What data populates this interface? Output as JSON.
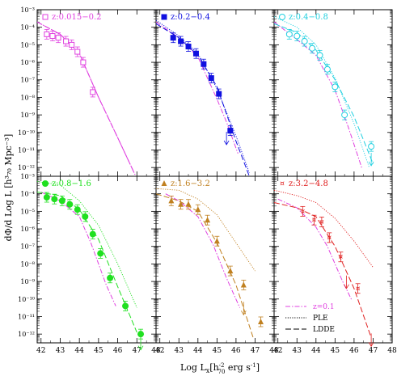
{
  "figure": {
    "xlabel": "Log L",
    "xlabel_sub": "x",
    "xlabel_units_pre": "[h",
    "xlabel_h_sup": "-2",
    "xlabel_h_sub": "70",
    "xlabel_units_post": " erg s",
    "xlabel_s_sup": "-1",
    "xlabel_close": "]",
    "ylabel": "dΦ/d Log L [h³₇₀ Mpc⁻³]"
  },
  "chart_data": {
    "type": "scatter",
    "layout": "2x3 panel grid",
    "xlim": [
      41.8,
      48.0
    ],
    "ylog": true,
    "ylim_exponent": [
      -12.5,
      -3
    ],
    "x_ticks": [
      42,
      43,
      44,
      45,
      46,
      47,
      48
    ],
    "x_tick_labels": [
      "42",
      "43",
      "44",
      "45",
      "46",
      "47",
      "48"
    ],
    "y_tick_labels": [
      "10⁻³",
      "10⁻⁴",
      "10⁻⁵",
      "10⁻⁶",
      "10⁻⁷",
      "10⁻⁸",
      "10⁻⁹",
      "10⁻¹⁰",
      "10⁻¹¹",
      "10⁻¹²"
    ],
    "legend": {
      "position": "bottom-right panel, lower right",
      "entries": [
        {
          "label": "z=0.1",
          "style": "dash-dot",
          "color": "#e040e0"
        },
        {
          "label": "PLE",
          "style": "dotted",
          "color": "#000000"
        },
        {
          "label": "LDDE",
          "style": "long-dash",
          "color": "#000000"
        }
      ]
    },
    "panels": [
      {
        "label": "z:0.015−0.2",
        "color": "#e040e0",
        "marker": "open-square",
        "points": [
          {
            "x": 42.3,
            "y": -4.4
          },
          {
            "x": 42.6,
            "y": -4.5
          },
          {
            "x": 42.9,
            "y": -4.6
          },
          {
            "x": 43.3,
            "y": -4.8
          },
          {
            "x": 43.6,
            "y": -5.0
          },
          {
            "x": 43.9,
            "y": -5.4
          },
          {
            "x": 44.2,
            "y": -6.0
          },
          {
            "x": 44.7,
            "y": -7.7
          }
        ],
        "ldde": [
          [
            41.8,
            -3.7
          ],
          [
            43.0,
            -4.4
          ],
          [
            44.0,
            -5.5
          ],
          [
            45.0,
            -8.0
          ],
          [
            46.0,
            -10.3
          ],
          [
            46.9,
            -12.4
          ]
        ],
        "ple": [
          [
            41.8,
            -3.7
          ],
          [
            43.0,
            -4.4
          ],
          [
            44.0,
            -5.5
          ],
          [
            45.0,
            -8.0
          ],
          [
            46.0,
            -10.3
          ],
          [
            46.9,
            -12.4
          ]
        ],
        "z01": [
          [
            41.8,
            -3.7
          ],
          [
            43.0,
            -4.4
          ],
          [
            44.0,
            -5.5
          ],
          [
            45.0,
            -8.0
          ],
          [
            46.0,
            -10.3
          ],
          [
            46.9,
            -12.4
          ]
        ]
      },
      {
        "label": "z:0.2−0.4",
        "color": "#1010e0",
        "marker": "filled-square",
        "points": [
          {
            "x": 42.7,
            "y": -4.6
          },
          {
            "x": 43.1,
            "y": -4.8
          },
          {
            "x": 43.5,
            "y": -5.1
          },
          {
            "x": 43.9,
            "y": -5.5
          },
          {
            "x": 44.3,
            "y": -6.1
          },
          {
            "x": 44.7,
            "y": -6.9
          },
          {
            "x": 45.1,
            "y": -7.8
          },
          {
            "x": 45.7,
            "y": -9.9
          }
        ],
        "upper_limits": [
          {
            "x": 45.5,
            "y": -10.7
          }
        ],
        "ldde": [
          [
            41.8,
            -3.8
          ],
          [
            43.0,
            -4.6
          ],
          [
            44.0,
            -5.6
          ],
          [
            45.0,
            -7.4
          ],
          [
            46.0,
            -10.5
          ],
          [
            46.7,
            -12.5
          ]
        ],
        "ple": [
          [
            41.8,
            -3.6
          ],
          [
            43.0,
            -4.5
          ],
          [
            44.0,
            -5.5
          ],
          [
            45.0,
            -7.5
          ],
          [
            46.0,
            -10.2
          ],
          [
            46.7,
            -12.3
          ]
        ],
        "z01": [
          [
            41.8,
            -3.7
          ],
          [
            43.0,
            -4.6
          ],
          [
            44.0,
            -5.7
          ],
          [
            45.0,
            -8.1
          ],
          [
            45.5,
            -9.4
          ],
          [
            46.1,
            -11.2
          ]
        ]
      },
      {
        "label": "z:0.4−0.8",
        "color": "#20d0e0",
        "marker": "open-circle",
        "points": [
          {
            "x": 42.6,
            "y": -4.4
          },
          {
            "x": 43.0,
            "y": -4.5
          },
          {
            "x": 43.4,
            "y": -4.8
          },
          {
            "x": 43.8,
            "y": -5.2
          },
          {
            "x": 44.2,
            "y": -5.6
          },
          {
            "x": 44.6,
            "y": -6.4
          },
          {
            "x": 45.0,
            "y": -7.4
          },
          {
            "x": 45.5,
            "y": -9.0
          },
          {
            "x": 46.9,
            "y": -10.8
          }
        ],
        "upper_limits": [
          {
            "x": 46.9,
            "y": -11.9
          }
        ],
        "ldde": [
          [
            41.8,
            -3.8
          ],
          [
            43.0,
            -4.3
          ],
          [
            44.0,
            -5.3
          ],
          [
            45.0,
            -7.0
          ],
          [
            46.0,
            -9.1
          ],
          [
            47.0,
            -11.8
          ]
        ],
        "ple": [
          [
            41.8,
            -3.4
          ],
          [
            43.0,
            -4.0
          ],
          [
            44.0,
            -5.0
          ],
          [
            45.0,
            -6.9
          ],
          [
            46.0,
            -9.5
          ],
          [
            46.8,
            -12.0
          ]
        ],
        "z01": [
          [
            41.8,
            -3.7
          ],
          [
            43.0,
            -4.7
          ],
          [
            44.0,
            -5.6
          ],
          [
            45.0,
            -7.6
          ],
          [
            45.7,
            -9.7
          ],
          [
            46.4,
            -12.0
          ]
        ]
      },
      {
        "label": "z:0.8−1.6",
        "color": "#20e020",
        "marker": "filled-circle",
        "points": [
          {
            "x": 42.3,
            "y": -4.2
          },
          {
            "x": 42.7,
            "y": -4.3
          },
          {
            "x": 43.1,
            "y": -4.4
          },
          {
            "x": 43.5,
            "y": -4.6
          },
          {
            "x": 43.9,
            "y": -4.9
          },
          {
            "x": 44.3,
            "y": -5.3
          },
          {
            "x": 44.7,
            "y": -6.3
          },
          {
            "x": 45.1,
            "y": -7.4
          },
          {
            "x": 45.6,
            "y": -8.8
          },
          {
            "x": 46.4,
            "y": -10.4
          },
          {
            "x": 47.2,
            "y": -12.0
          }
        ],
        "upper_limits": [
          {
            "x": 47.2,
            "y": -12.9
          }
        ],
        "ldde": [
          [
            41.8,
            -3.9
          ],
          [
            43.0,
            -4.1
          ],
          [
            44.0,
            -4.9
          ],
          [
            45.0,
            -6.6
          ],
          [
            46.0,
            -9.3
          ],
          [
            47.0,
            -11.9
          ]
        ],
        "ple": [
          [
            41.8,
            -3.3
          ],
          [
            43.0,
            -3.5
          ],
          [
            44.0,
            -4.4
          ],
          [
            45.0,
            -5.8
          ],
          [
            46.0,
            -8.0
          ],
          [
            47.0,
            -10.5
          ]
        ],
        "z01": [
          [
            42.0,
            -3.9
          ],
          [
            43.0,
            -4.4
          ],
          [
            44.0,
            -5.3
          ],
          [
            44.6,
            -6.8
          ],
          [
            45.4,
            -9.2
          ],
          [
            45.9,
            -10.4
          ]
        ]
      },
      {
        "label": "z:1.6−3.2",
        "color": "#c08020",
        "marker": "filled-triangle",
        "points": [
          {
            "x": 42.6,
            "y": -4.4
          },
          {
            "x": 43.1,
            "y": -4.6
          },
          {
            "x": 43.5,
            "y": -4.6
          },
          {
            "x": 44.0,
            "y": -4.9
          },
          {
            "x": 44.5,
            "y": -5.5
          },
          {
            "x": 45.0,
            "y": -6.7
          },
          {
            "x": 45.7,
            "y": -8.4
          },
          {
            "x": 46.4,
            "y": -9.2
          },
          {
            "x": 47.3,
            "y": -11.3
          }
        ],
        "upper_limits": [
          {
            "x": 46.4,
            "y": -10.9
          }
        ],
        "ldde": [
          [
            41.8,
            -4.0
          ],
          [
            43.0,
            -4.4
          ],
          [
            44.0,
            -5.0
          ],
          [
            45.0,
            -6.8
          ],
          [
            46.0,
            -9.2
          ],
          [
            46.9,
            -12.2
          ]
        ],
        "ple": [
          [
            41.8,
            -3.7
          ],
          [
            43.0,
            -3.8
          ],
          [
            44.0,
            -4.3
          ],
          [
            45.0,
            -5.2
          ],
          [
            46.0,
            -6.8
          ],
          [
            47.0,
            -8.4
          ]
        ],
        "z01": [
          [
            42.3,
            -4.0
          ],
          [
            43.0,
            -4.4
          ],
          [
            44.0,
            -5.3
          ],
          [
            44.8,
            -6.9
          ],
          [
            45.5,
            -8.8
          ],
          [
            46.2,
            -10.5
          ]
        ]
      },
      {
        "label": "z:3.2−4.8",
        "color": "#e02020",
        "marker": "open-star",
        "points": [
          {
            "x": 43.3,
            "y": -5.0
          },
          {
            "x": 43.9,
            "y": -5.5
          },
          {
            "x": 44.3,
            "y": -5.6
          },
          {
            "x": 44.7,
            "y": -6.5
          },
          {
            "x": 45.3,
            "y": -7.6
          },
          {
            "x": 46.2,
            "y": -9.4
          }
        ],
        "upper_limits": [
          {
            "x": 45.6,
            "y": -9.4
          },
          {
            "x": 46.9,
            "y": -12.7
          }
        ],
        "ldde": [
          [
            41.8,
            -4.5
          ],
          [
            43.0,
            -4.8
          ],
          [
            44.0,
            -5.3
          ],
          [
            45.0,
            -7.0
          ],
          [
            46.0,
            -9.4
          ],
          [
            46.9,
            -12.2
          ]
        ],
        "ple": [
          [
            41.8,
            -3.8
          ],
          [
            43.0,
            -4.1
          ],
          [
            44.0,
            -4.5
          ],
          [
            45.0,
            -5.4
          ],
          [
            46.0,
            -6.7
          ],
          [
            47.0,
            -8.2
          ]
        ],
        "z01": [
          [
            42.0,
            -4.3
          ],
          [
            43.0,
            -4.8
          ],
          [
            44.0,
            -5.9
          ],
          [
            44.6,
            -7.0
          ],
          [
            45.4,
            -9.0
          ],
          [
            45.9,
            -10.1
          ]
        ]
      }
    ]
  }
}
